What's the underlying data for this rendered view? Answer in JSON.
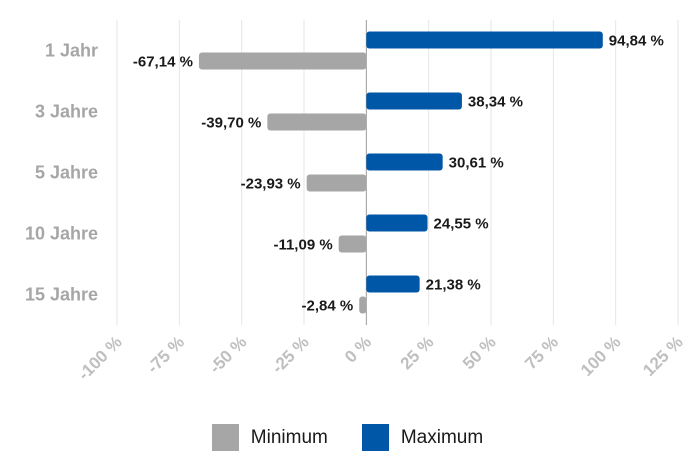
{
  "chart_data": {
    "type": "bar",
    "orientation": "horizontal",
    "categories": [
      "1 Jahr",
      "3 Jahre",
      "5 Jahre",
      "10 Jahre",
      "15 Jahre"
    ],
    "series": [
      {
        "name": "Maximum",
        "color": "#0057a8",
        "values": [
          94.84,
          38.34,
          30.61,
          24.55,
          21.38
        ],
        "labels": [
          "94,84 %",
          "38,34 %",
          "30,61 %",
          "24,55 %",
          "21,38 %"
        ]
      },
      {
        "name": "Minimum",
        "color": "#a6a6a6",
        "values": [
          -67.14,
          -39.7,
          -23.93,
          -11.09,
          -2.84
        ],
        "labels": [
          "-67,14 %",
          "-39,70 %",
          "-23,93 %",
          "-11,09 %",
          "-2,84 %"
        ]
      }
    ],
    "xlim": [
      -100,
      125
    ],
    "xticks": [
      -100,
      -75,
      -50,
      -25,
      0,
      25,
      50,
      75,
      100,
      125
    ],
    "xtick_labels": [
      "-100 %",
      "-75 %",
      "-50 %",
      "-25 %",
      "0 %",
      "25 %",
      "50 %",
      "75 %",
      "100 %",
      "125 %"
    ],
    "grid": true,
    "legend_position": "bottom",
    "legend": [
      {
        "name": "Minimum",
        "color": "#a6a6a6"
      },
      {
        "name": "Maximum",
        "color": "#0057a8"
      }
    ]
  }
}
